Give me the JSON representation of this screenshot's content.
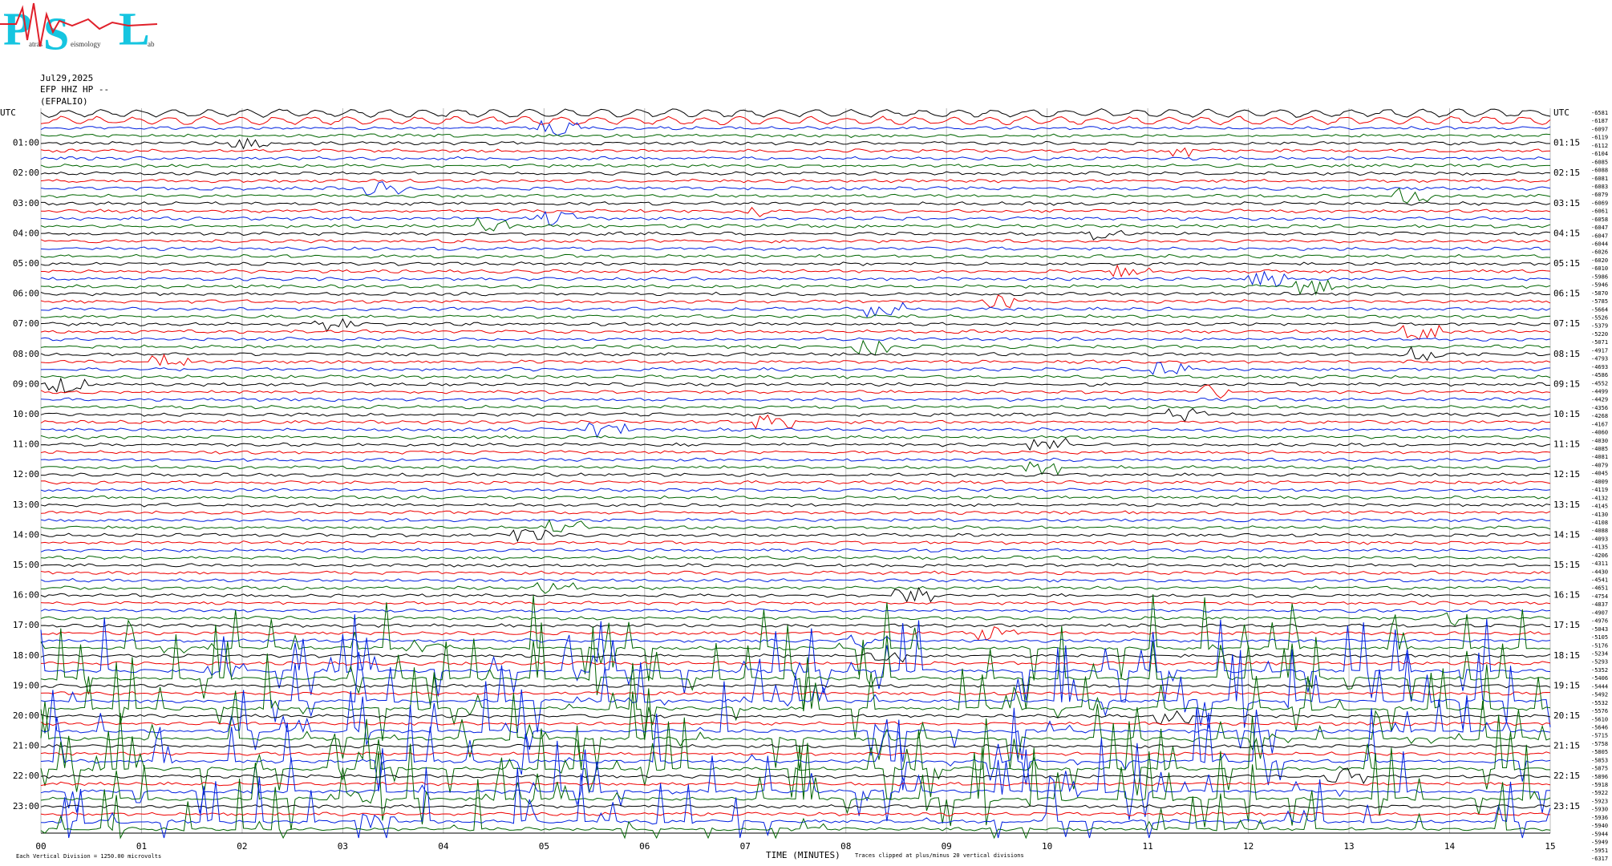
{
  "logo": {
    "letters": [
      "P",
      "S",
      "L"
    ],
    "words": [
      "atras",
      "eismology",
      "ab"
    ]
  },
  "header": {
    "date": "Jul29,2025",
    "channel": "EFP HHZ HP --",
    "station": "(EFPALIO)"
  },
  "left_labels": [
    "UTC",
    "01:00",
    "02:00",
    "03:00",
    "04:00",
    "05:00",
    "06:00",
    "07:00",
    "08:00",
    "09:00",
    "10:00",
    "11:00",
    "12:00",
    "13:00",
    "14:00",
    "15:00",
    "16:00",
    "17:00",
    "18:00",
    "19:00",
    "20:00",
    "21:00",
    "22:00",
    "23:00"
  ],
  "right_labels": [
    "UTC",
    "01:15",
    "02:15",
    "03:15",
    "04:15",
    "05:15",
    "06:15",
    "07:15",
    "08:15",
    "09:15",
    "10:15",
    "11:15",
    "12:15",
    "13:15",
    "14:15",
    "15:15",
    "16:15",
    "17:15",
    "18:15",
    "19:15",
    "20:15",
    "21:15",
    "22:15",
    "23:15"
  ],
  "offsets": [
    "-6581",
    "-6187",
    "-6097",
    "-6119",
    "-6112",
    "-6104",
    "-6085",
    "-6088",
    "-6081",
    "-6083",
    "-6079",
    "-6069",
    "-6061",
    "-6058",
    "-6047",
    "-6047",
    "-6044",
    "-6026",
    "-6020",
    "-6010",
    "-5986",
    "-5946",
    "-5870",
    "-5785",
    "-5664",
    "-5526",
    "-5379",
    "-5220",
    "-5071",
    "-4917",
    "-4793",
    "-4693",
    "-4586",
    "-4552",
    "-4499",
    "-4429",
    "-4356",
    "-4268",
    "-4167",
    "-4060",
    "-4030",
    "-4085",
    "-4081",
    "-4079",
    "-4045",
    "-4009",
    "-4119",
    "-4132",
    "-4145",
    "-4130",
    "-4108",
    "-4088",
    "-4093",
    "-4135",
    "-4206",
    "-4311",
    "-4430",
    "-4541",
    "-4651",
    "-4754",
    "-4837",
    "-4907",
    "-4976",
    "-5043",
    "-5105",
    "-5176",
    "-5234",
    "-5293",
    "-5352",
    "-5406",
    "-5444",
    "-5492",
    "-5532",
    "-5576",
    "-5610",
    "-5646",
    "-5715",
    "-5758",
    "-5805",
    "-5853",
    "-5875",
    "-5896",
    "-5918",
    "-5922",
    "-5923",
    "-5930",
    "-5936",
    "-5940",
    "-5944",
    "-5949",
    "-5951",
    "-6317"
  ],
  "x_labels": [
    "00",
    "01",
    "02",
    "03",
    "04",
    "05",
    "06",
    "07",
    "08",
    "09",
    "10",
    "11",
    "12",
    "13",
    "14",
    "15"
  ],
  "footer": {
    "scale": "Each Vertical Division = 1250.00 microvolts",
    "axis_title": "TIME (MINUTES)",
    "note": "Traces clipped at plus/minus 20 vertical divisions"
  }
}
